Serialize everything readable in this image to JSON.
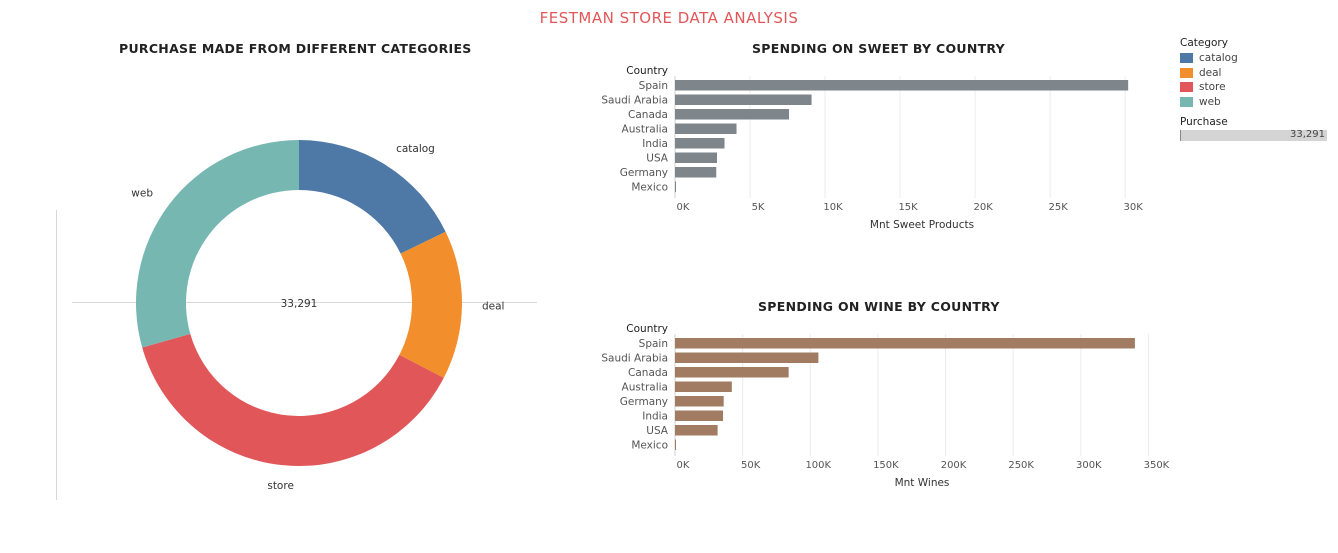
{
  "dashboard": {
    "title": "FESTMAN STORE DATA ANALYSIS"
  },
  "donut": {
    "title": "PURCHASE MADE FROM DIFFERENT CATEGORIES",
    "center_label": "33,291"
  },
  "sweet": {
    "title": "SPENDING ON SWEET BY COUNTRY"
  },
  "wine": {
    "title": "SPENDING ON WINE BY COUNTRY"
  },
  "legend": {
    "category_title": "Category",
    "items": [
      {
        "label": "catalog",
        "color": "#4e79a7"
      },
      {
        "label": "deal",
        "color": "#f28e2b"
      },
      {
        "label": "store",
        "color": "#e15759"
      },
      {
        "label": "web",
        "color": "#76b7b2"
      }
    ],
    "purchase_title": "Purchase",
    "purchase_value": "33,291"
  },
  "chart_data": [
    {
      "type": "pie",
      "title": "PURCHASE MADE FROM DIFFERENT CATEGORIES",
      "donut": true,
      "total_label": "33,291",
      "categories": [
        "catalog",
        "deal",
        "store",
        "web"
      ],
      "values": [
        17.8,
        14.8,
        38.0,
        29.4
      ],
      "colors": [
        "#4e79a7",
        "#f28e2b",
        "#e15759",
        "#76b7b2"
      ]
    },
    {
      "type": "bar",
      "orientation": "horizontal",
      "title": "SPENDING ON SWEET BY COUNTRY",
      "category_axis_title": "Country",
      "xlabel": "Mnt Sweet Products",
      "categories": [
        "Spain",
        "Saudi Arabia",
        "Canada",
        "Australia",
        "India",
        "USA",
        "Germany",
        "Mexico"
      ],
      "values": [
        30200,
        9100,
        7600,
        4100,
        3300,
        2800,
        2750,
        40
      ],
      "xlim": [
        0,
        32000
      ],
      "ticks": [
        0,
        5000,
        10000,
        15000,
        20000,
        25000,
        30000
      ],
      "tick_labels": [
        "0K",
        "5K",
        "10K",
        "15K",
        "20K",
        "25K",
        "30K"
      ],
      "color": "#7f868b",
      "grid": "vertical"
    },
    {
      "type": "bar",
      "orientation": "horizontal",
      "title": "SPENDING ON WINE BY COUNTRY",
      "category_axis_title": "Country",
      "xlabel": "Mnt Wines",
      "categories": [
        "Spain",
        "Saudi Arabia",
        "Canada",
        "Australia",
        "Germany",
        "India",
        "USA",
        "Mexico"
      ],
      "values": [
        340000,
        106000,
        84000,
        42000,
        36000,
        35500,
        31500,
        500
      ],
      "xlim": [
        0,
        355000
      ],
      "ticks": [
        0,
        50000,
        100000,
        150000,
        200000,
        250000,
        300000,
        350000
      ],
      "tick_labels": [
        "0K",
        "50K",
        "100K",
        "150K",
        "200K",
        "250K",
        "300K",
        "350K"
      ],
      "color": "#a27c62",
      "grid": "vertical"
    }
  ]
}
